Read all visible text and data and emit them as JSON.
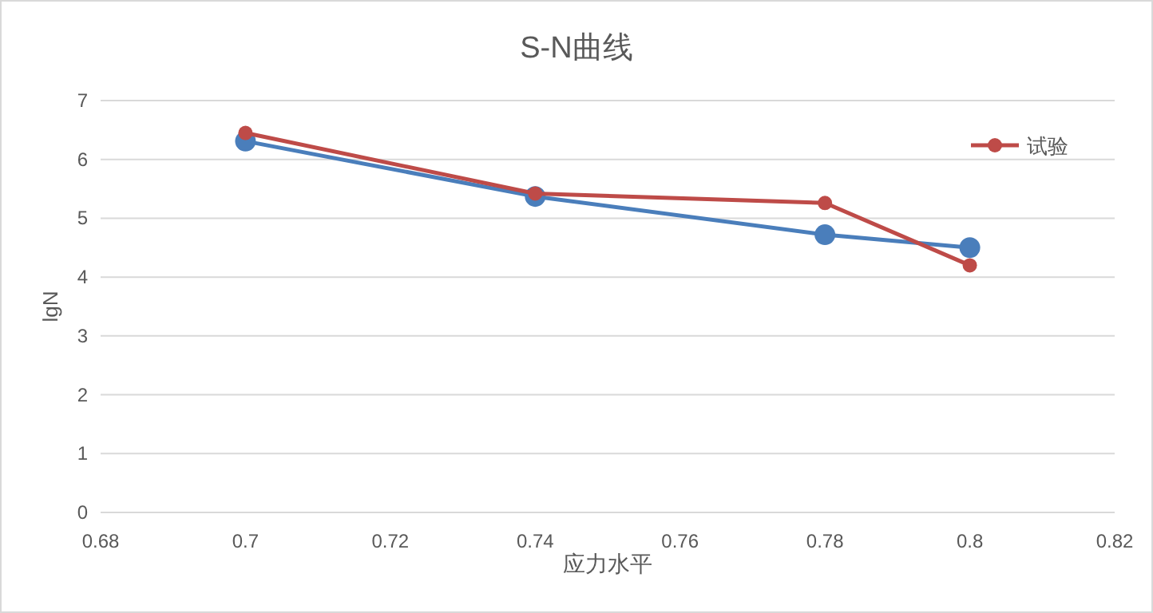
{
  "chart_data": {
    "type": "line",
    "title": "S-N曲线",
    "xlabel": "应力水平",
    "ylabel": "lgN",
    "x": [
      0.7,
      0.74,
      0.78,
      0.8
    ],
    "series": [
      {
        "color": "#4a7ebb",
        "values": [
          6.31,
          5.37,
          4.72,
          4.5
        ]
      },
      {
        "name": "试验",
        "color": "#be4b48",
        "values": [
          6.45,
          5.42,
          5.26,
          4.2
        ]
      }
    ],
    "xlim": [
      0.68,
      0.82
    ],
    "xticks": [
      0.68,
      0.7,
      0.72,
      0.74,
      0.76,
      0.78,
      0.8,
      0.82
    ],
    "ylim": [
      0,
      7
    ],
    "yticks": [
      0,
      1,
      2,
      3,
      4,
      5,
      6,
      7
    ],
    "grid": "y",
    "legend": "top right",
    "marker": "circle",
    "line_style": "solid"
  }
}
